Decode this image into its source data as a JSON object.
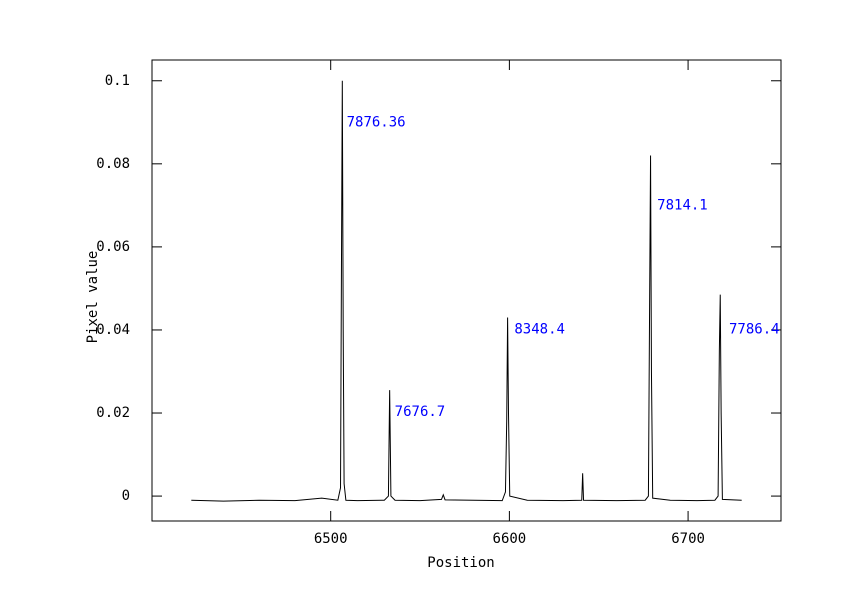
{
  "chart_data": {
    "type": "line",
    "x_label": "Position",
    "y_label": "Pixel value",
    "xlim": [
      6400,
      6752
    ],
    "ylim": [
      -0.006,
      0.105
    ],
    "xticks": [
      6500,
      6600,
      6700
    ],
    "yticks": [
      0,
      0.02,
      0.04,
      0.06,
      0.08,
      0.1
    ],
    "series": [
      {
        "color": "#000000",
        "x": [
          6422,
          6440,
          6460,
          6480,
          6495,
          6504,
          6505.5,
          6506,
          6506.5,
          6507,
          6507.5,
          6508.5,
          6515,
          6530,
          6532.3,
          6533,
          6533.7,
          6536,
          6550,
          6562,
          6563,
          6564,
          6580,
          6596,
          6597.8,
          6598.5,
          6599,
          6599.5,
          6600.2,
          6610,
          6630,
          6640.5,
          6641,
          6641.5,
          6660,
          6676,
          6677.8,
          6678.5,
          6679,
          6679.5,
          6680.2,
          6690,
          6705,
          6715,
          6716.8,
          6717.5,
          6718,
          6718.5,
          6719.2,
          6730
        ],
        "values": [
          -0.001,
          -0.0012,
          -0.001,
          -0.0011,
          -0.0005,
          -0.001,
          0.002,
          0.053,
          0.1,
          0.04,
          0.003,
          -0.001,
          -0.0011,
          -0.001,
          0.0,
          0.0255,
          0.0,
          -0.001,
          -0.0011,
          -0.0008,
          0.0003,
          -0.0009,
          -0.001,
          -0.0011,
          0.001,
          0.018,
          0.043,
          0.02,
          0.0,
          -0.001,
          -0.0011,
          -0.001,
          0.0055,
          -0.001,
          -0.0011,
          -0.001,
          0.0,
          0.048,
          0.082,
          0.03,
          -0.0005,
          -0.001,
          -0.0011,
          -0.001,
          0.0,
          0.035,
          0.0485,
          0.02,
          -0.0008,
          -0.001
        ]
      }
    ],
    "annotations": [
      {
        "text": "7876.36",
        "x": 6508.9,
        "y": 0.0899,
        "color": "#0000ff"
      },
      {
        "text": "7676.7",
        "x": 6535.8,
        "y": 0.0202,
        "color": "#0000ff"
      },
      {
        "text": "8348.4",
        "x": 6602.8,
        "y": 0.0401,
        "color": "#0000ff"
      },
      {
        "text": "7814.1",
        "x": 6682.7,
        "y": 0.07,
        "color": "#0000ff"
      },
      {
        "text": "7786.4",
        "x": 6722.9,
        "y": 0.0401,
        "color": "#0000ff"
      }
    ]
  }
}
